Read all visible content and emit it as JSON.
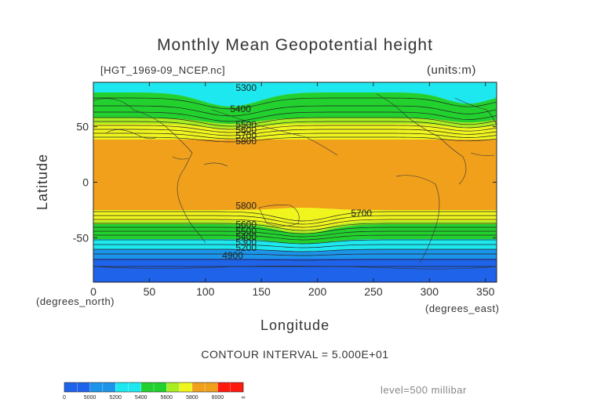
{
  "title": "Monthly Mean Geopotential height",
  "file_label": "[HGT_1969-09_NCEP.nc]",
  "units_label": "(units:m)",
  "contour_interval": "CONTOUR INTERVAL = 5.000E+01",
  "level_label": "level=500 millibar",
  "colors": {
    "band_blue": "#1f63ea",
    "band_mid_blue": "#1b94ea",
    "band_cyan": "#1de8f0",
    "band_green": "#22d12e",
    "band_light_green": "#a9ee22",
    "band_yellow": "#f1f51e",
    "band_orange": "#f1a01c",
    "band_red": "#ff1a0f"
  },
  "chart_data": {
    "type": "heatmap",
    "title": "Monthly Mean Geopotential height",
    "xlabel": "Longitude",
    "ylabel": "Latitude",
    "xunit": "(degrees_east)",
    "yunit": "(degrees_north)",
    "xlim": [
      0,
      360
    ],
    "ylim": [
      -90,
      90
    ],
    "xticks": [
      0,
      50,
      100,
      150,
      200,
      250,
      300,
      350
    ],
    "yticks": [
      50,
      0,
      -50
    ],
    "contour_labels": [
      {
        "text": "5300",
        "lon": 127,
        "lat": 85
      },
      {
        "text": "5400",
        "lon": 122,
        "lat": 66
      },
      {
        "text": "5500",
        "lon": 127,
        "lat": 52
      },
      {
        "text": "5600",
        "lon": 127,
        "lat": 47
      },
      {
        "text": "5700",
        "lon": 127,
        "lat": 42
      },
      {
        "text": "5800",
        "lon": 127,
        "lat": 37
      },
      {
        "text": "5800",
        "lon": 127,
        "lat": -21
      },
      {
        "text": "5700",
        "lon": 230,
        "lat": -28
      },
      {
        "text": "5600",
        "lon": 127,
        "lat": -38
      },
      {
        "text": "5500",
        "lon": 127,
        "lat": -44
      },
      {
        "text": "5400",
        "lon": 127,
        "lat": -49
      },
      {
        "text": "5300",
        "lon": 127,
        "lat": -54
      },
      {
        "text": "5200",
        "lon": 127,
        "lat": -59
      },
      {
        "text": "4900",
        "lon": 115,
        "lat": -66
      }
    ],
    "colorbar": {
      "labels": [
        "0",
        "5000",
        "5200",
        "5400",
        "5600",
        "5800",
        "6000",
        "∞"
      ]
    }
  }
}
